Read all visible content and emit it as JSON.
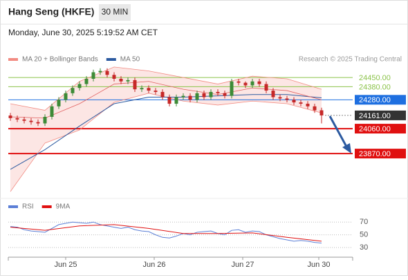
{
  "header": {
    "title": "Hang Seng (HKFE)",
    "timeframe": "30 MIN",
    "timestamp": "Monday, June 30, 2025 5:19:52 AM CET"
  },
  "chart_data": [
    {
      "type": "candlestick",
      "legend": [
        {
          "name": "MA 20 + Bollinger Bands",
          "color": "#f28b82"
        },
        {
          "name": "MA 50",
          "color": "#2c5aa0"
        }
      ],
      "credit": "Research © 2025 Trading Central",
      "up_color": "#3d8b37",
      "down_color": "#c62828",
      "xlim": [
        -0.3,
        49.5
      ],
      "ylim": [
        23565,
        24540
      ],
      "x": [
        0,
        1,
        2,
        3,
        4,
        5,
        6,
        7,
        8,
        9,
        10,
        11,
        12,
        13,
        14,
        15,
        16,
        17,
        18,
        19,
        20,
        21,
        22,
        23,
        24,
        25,
        26,
        27,
        28,
        29,
        30,
        31,
        32,
        33,
        34,
        35,
        36,
        37,
        38,
        39,
        40,
        41,
        42,
        43,
        44,
        45
      ],
      "open": [
        24160,
        24140,
        24130,
        24120,
        24110,
        24100,
        24150,
        24230,
        24280,
        24330,
        24370,
        24400,
        24440,
        24490,
        24500,
        24470,
        24440,
        24420,
        24430,
        24360,
        24370,
        24350,
        24340,
        24300,
        24250,
        24300,
        24310,
        24280,
        24330,
        24300,
        24340,
        24330,
        24310,
        24420,
        24410,
        24390,
        24420,
        24400,
        24350,
        24300,
        24290,
        24280,
        24260,
        24250,
        24230,
        24200
      ],
      "close": [
        24140,
        24130,
        24120,
        24110,
        24100,
        24150,
        24230,
        24280,
        24330,
        24370,
        24400,
        24440,
        24490,
        24500,
        24470,
        24440,
        24420,
        24430,
        24360,
        24370,
        24350,
        24340,
        24300,
        24250,
        24300,
        24310,
        24280,
        24330,
        24300,
        24340,
        24330,
        24310,
        24420,
        24410,
        24390,
        24420,
        24400,
        24350,
        24300,
        24290,
        24280,
        24260,
        24250,
        24230,
        24200,
        24161
      ],
      "high": [
        24180,
        24160,
        24150,
        24140,
        24130,
        24170,
        24250,
        24300,
        24350,
        24390,
        24420,
        24460,
        24510,
        24520,
        24520,
        24490,
        24460,
        24450,
        24450,
        24390,
        24390,
        24370,
        24360,
        24320,
        24320,
        24330,
        24330,
        24350,
        24350,
        24360,
        24360,
        24350,
        24440,
        24440,
        24420,
        24440,
        24440,
        24420,
        24370,
        24320,
        24310,
        24300,
        24280,
        24270,
        24250,
        24220
      ],
      "low": [
        24120,
        24110,
        24100,
        24090,
        24080,
        24080,
        24130,
        24210,
        24260,
        24310,
        24350,
        24380,
        24420,
        24470,
        24450,
        24420,
        24400,
        24400,
        24340,
        24340,
        24330,
        24320,
        24280,
        24230,
        24230,
        24280,
        24260,
        24260,
        24280,
        24280,
        24310,
        24290,
        24290,
        24390,
        24370,
        24370,
        24380,
        24330,
        24280,
        24270,
        24260,
        24240,
        24230,
        24210,
        24180,
        24100
      ],
      "ma_x": [
        0,
        5,
        10,
        15,
        20,
        25,
        30,
        35,
        40,
        45
      ],
      "ma50": [
        23750,
        23900,
        24080,
        24250,
        24300,
        24300,
        24310,
        24320,
        24320,
        24295
      ],
      "ma20": [
        24150,
        24140,
        24250,
        24400,
        24420,
        24360,
        24320,
        24370,
        24350,
        24280
      ],
      "bb_upper": [
        24250,
        24200,
        24420,
        24530,
        24500,
        24450,
        24400,
        24460,
        24440,
        24360
      ],
      "bb_lower": [
        23580,
        23950,
        24050,
        24260,
        24330,
        24270,
        24240,
        24270,
        24250,
        24180
      ],
      "levels": [
        {
          "value": 24450,
          "label": "24450.00",
          "color": "#8bc34a",
          "box": false,
          "dash": false
        },
        {
          "value": 24380,
          "label": "24380.00",
          "color": "#8bc34a",
          "box": false,
          "dash": false
        },
        {
          "value": 24280,
          "label": "24280.00",
          "color": "#1e6fe0",
          "box": true,
          "dash": false
        },
        {
          "value": 24161,
          "label": "24161.00",
          "color": "#333333",
          "box": true,
          "dash": true
        },
        {
          "value": 24060,
          "label": "24060.00",
          "color": "#e01010",
          "box": true,
          "dash": false
        },
        {
          "value": 23870,
          "label": "23870.00",
          "color": "#e01010",
          "box": true,
          "dash": false
        }
      ]
    },
    {
      "type": "line",
      "legend": [
        {
          "name": "RSI",
          "color": "#5b7fd6"
        },
        {
          "name": "9MA",
          "color": "#e01010"
        }
      ],
      "xlim": [
        -0.3,
        49.5
      ],
      "ylim": [
        17,
        80
      ],
      "yticks": [
        70,
        50,
        30
      ],
      "xticks": [
        {
          "value": 8,
          "label": "Jun 25"
        },
        {
          "value": 20.8,
          "label": "Jun 26"
        },
        {
          "value": 33.6,
          "label": "Jun 27"
        },
        {
          "value": 44.6,
          "label": "Jun 30"
        }
      ],
      "x": [
        0,
        1,
        2,
        3,
        4,
        5,
        6,
        7,
        8,
        9,
        10,
        11,
        12,
        13,
        14,
        15,
        16,
        17,
        18,
        19,
        20,
        21,
        22,
        23,
        24,
        25,
        26,
        27,
        28,
        29,
        30,
        31,
        32,
        33,
        34,
        35,
        36,
        37,
        38,
        39,
        40,
        41,
        42,
        43,
        44,
        45
      ],
      "rsi": [
        63,
        62,
        58,
        56,
        55,
        54,
        60,
        66,
        68,
        70,
        69,
        68,
        70,
        66,
        64,
        62,
        60,
        62,
        58,
        56,
        55,
        50,
        46,
        45,
        48,
        52,
        50,
        54,
        55,
        56,
        52,
        50,
        57,
        58,
        54,
        56,
        55,
        50,
        47,
        44,
        42,
        40,
        41,
        40,
        38,
        37
      ],
      "ma_x": [
        0,
        5,
        10,
        15,
        20,
        25,
        30,
        35,
        40,
        45
      ],
      "ma9": [
        62,
        57,
        64,
        66,
        60,
        52,
        52,
        53,
        46,
        40
      ]
    }
  ]
}
